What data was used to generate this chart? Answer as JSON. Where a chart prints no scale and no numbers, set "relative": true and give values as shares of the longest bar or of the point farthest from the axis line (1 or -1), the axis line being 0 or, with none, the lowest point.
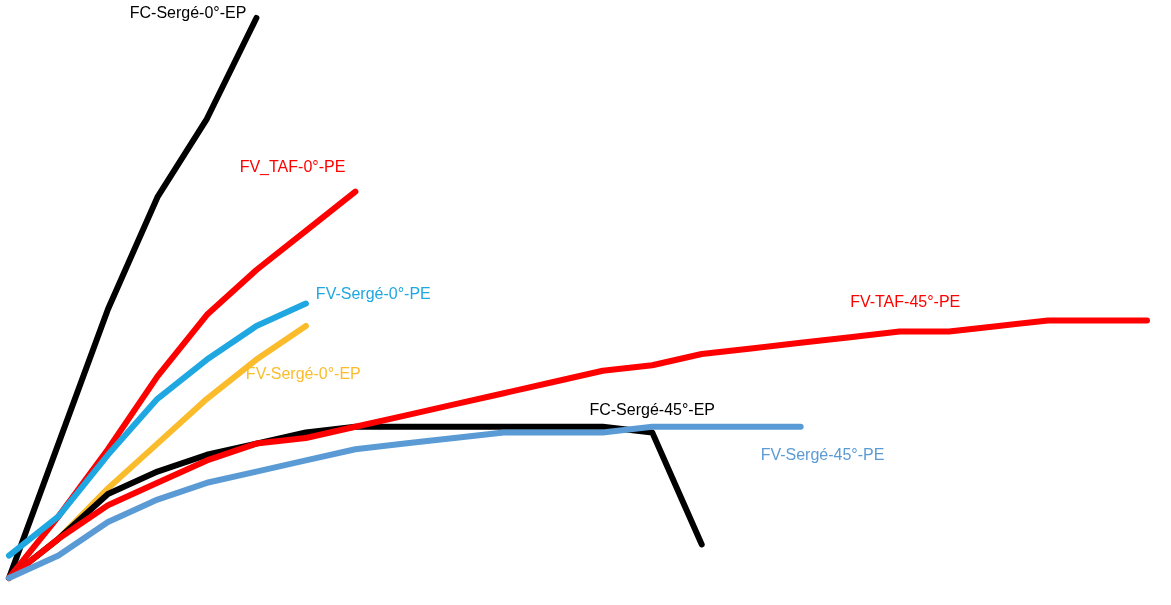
{
  "chart_data": {
    "type": "line",
    "relative": true,
    "categories": [
      null,
      null,
      null,
      null,
      null,
      null,
      null,
      null,
      null,
      null,
      null,
      null,
      null,
      null,
      null,
      null,
      null,
      null,
      null,
      null,
      null,
      null,
      null,
      null
    ],
    "series": [
      {
        "name": "FC-Sergé-0°-EP",
        "color": "#000000",
        "values": [
          0.0,
          0.24,
          0.48,
          0.68,
          0.82,
          1.0,
          null,
          null,
          null,
          null,
          null,
          null,
          null,
          null,
          null,
          null,
          null,
          null,
          null,
          null,
          null,
          null,
          null,
          null
        ]
      },
      {
        "name": "FV_TAF-0°-PE",
        "color": "#ff0000",
        "values": [
          0.0,
          0.11,
          0.23,
          0.36,
          0.47,
          0.55,
          0.62,
          0.69,
          null,
          null,
          null,
          null,
          null,
          null,
          null,
          null,
          null,
          null,
          null,
          null,
          null,
          null,
          null,
          null
        ]
      },
      {
        "name": "FV-Sergé-0°-PE",
        "color": "#1ea7e1",
        "values": [
          0.04,
          0.11,
          0.22,
          0.32,
          0.39,
          0.45,
          0.49,
          null,
          null,
          null,
          null,
          null,
          null,
          null,
          null,
          null,
          null,
          null,
          null,
          null,
          null,
          null,
          null,
          null
        ]
      },
      {
        "name": "FV-Sergé-0°-EP",
        "color": "#fbbc2c",
        "values": [
          0.0,
          0.07,
          0.16,
          0.24,
          0.32,
          0.39,
          0.45,
          null,
          null,
          null,
          null,
          null,
          null,
          null,
          null,
          null,
          null,
          null,
          null,
          null,
          null,
          null,
          null,
          null
        ]
      },
      {
        "name": "FC-Sergé-45°-EP",
        "color": "#000000",
        "values": [
          0.0,
          0.07,
          0.15,
          0.19,
          0.22,
          0.24,
          0.26,
          0.27,
          0.27,
          0.27,
          0.27,
          0.27,
          0.27,
          0.26,
          0.06,
          null,
          null,
          null,
          null,
          null,
          null,
          null,
          null,
          null
        ]
      },
      {
        "name": "FV-TAF-45°-PE",
        "color": "#ff0000",
        "values": [
          0.0,
          0.07,
          0.13,
          0.17,
          0.21,
          0.24,
          0.25,
          0.27,
          0.29,
          0.31,
          0.33,
          0.35,
          0.37,
          0.38,
          0.4,
          0.41,
          0.42,
          0.43,
          0.44,
          0.44,
          0.45,
          0.46,
          0.46,
          0.46
        ]
      },
      {
        "name": "FV-Sergé-45°-PE",
        "color": "#5b9bd5",
        "values": [
          0.0,
          0.04,
          0.1,
          0.14,
          0.17,
          0.19,
          0.21,
          0.23,
          0.24,
          0.25,
          0.26,
          0.26,
          0.26,
          0.27,
          0.27,
          0.27,
          0.27,
          null,
          null,
          null,
          null,
          null,
          null,
          null
        ]
      }
    ]
  }
}
